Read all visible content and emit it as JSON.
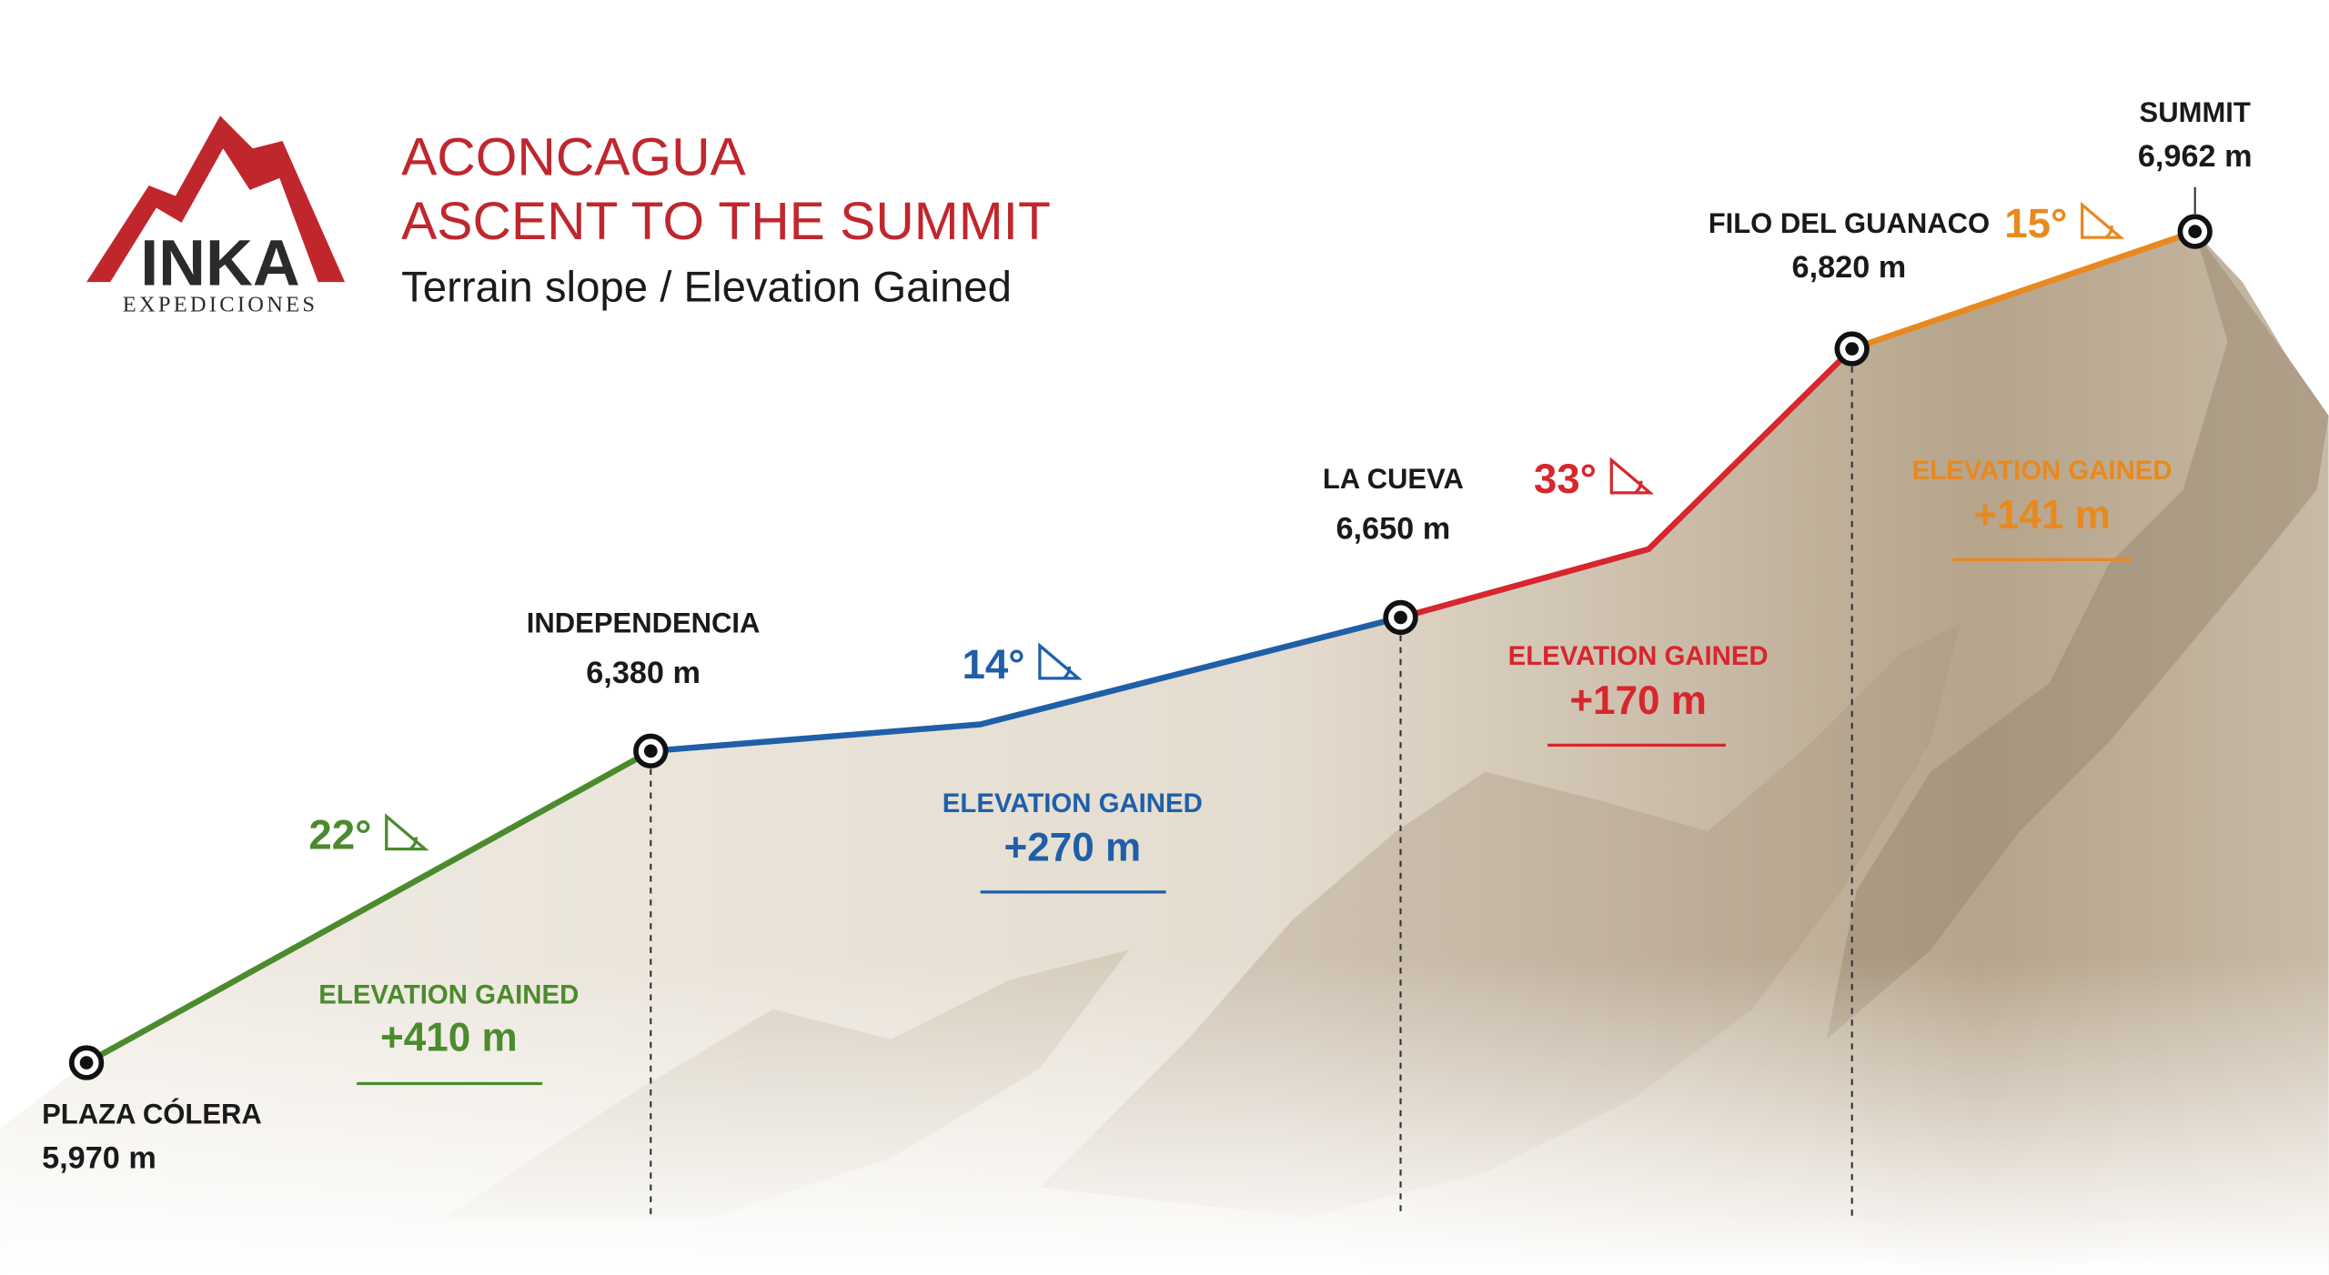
{
  "logo": {
    "name": "INKA",
    "tagline": "EXPEDICIONES"
  },
  "header": {
    "title": [
      "ACONCAGUA",
      "ASCENT TO THE SUMMIT"
    ],
    "subtitle": "Terrain slope / Elevation Gained"
  },
  "waypoints": [
    {
      "name": "PLAZA CÓLERA",
      "elevation": "5,970 m"
    },
    {
      "name": "INDEPENDENCIA",
      "elevation": "6,380 m"
    },
    {
      "name": "LA CUEVA",
      "elevation": "6,650 m"
    },
    {
      "name": "FILO DEL GUANACO",
      "elevation": "6,820 m"
    },
    {
      "name": "SUMMIT",
      "elevation": "6,962 m"
    }
  ],
  "segments": [
    {
      "slope": "22°",
      "gain_label": "ELEVATION GAINED",
      "gain": "+410 m",
      "color": "#4b8b2e"
    },
    {
      "slope": "14°",
      "gain_label": "ELEVATION GAINED",
      "gain": "+270 m",
      "color": "#1f5fa8"
    },
    {
      "slope": "33°",
      "gain_label": "ELEVATION GAINED",
      "gain": "+170 m",
      "color": "#d7262e"
    },
    {
      "slope": "15°",
      "gain_label": "ELEVATION GAINED",
      "gain": "+141 m",
      "color": "#e8891f"
    }
  ]
}
